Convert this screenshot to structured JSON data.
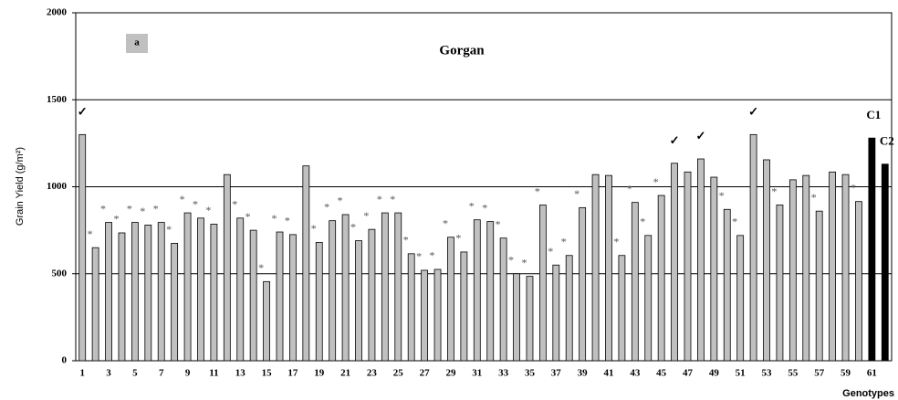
{
  "chart_data": {
    "type": "bar",
    "title": "Gorgan",
    "panel_label": "a",
    "y_label": "Grain Yield (g/m²)",
    "x_label": "Genotypes",
    "categories": [
      "1",
      null,
      "3",
      null,
      "5",
      null,
      "7",
      null,
      "9",
      null,
      "11",
      null,
      "13",
      null,
      "15",
      null,
      "17",
      null,
      "19",
      null,
      "21",
      null,
      "23",
      null,
      "25",
      null,
      "27",
      null,
      "29",
      null,
      "31",
      null,
      "33",
      null,
      "35",
      null,
      "37",
      null,
      "39",
      null,
      "41",
      null,
      "43",
      null,
      "45",
      null,
      "47",
      null,
      "49",
      null,
      "51",
      null,
      "53",
      null,
      "55",
      null,
      "57",
      null,
      "59",
      null,
      "61",
      null
    ],
    "values": [
      1300,
      650,
      795,
      735,
      795,
      780,
      795,
      675,
      850,
      820,
      785,
      1070,
      820,
      750,
      455,
      740,
      725,
      1120,
      680,
      805,
      840,
      690,
      755,
      850,
      850,
      615,
      520,
      525,
      710,
      625,
      810,
      800,
      705,
      500,
      485,
      895,
      550,
      605,
      880,
      1070,
      1065,
      605,
      910,
      720,
      950,
      1135,
      1085,
      1160,
      1055,
      870,
      720,
      1300,
      1155,
      895,
      1040,
      1065,
      860,
      1085,
      1070,
      915,
      1280,
      1130
    ],
    "annotations": [
      "✓",
      "*",
      "*",
      "*",
      "*",
      "*",
      "*",
      "*",
      "*",
      "*",
      "*",
      null,
      "*",
      "*",
      "*",
      "*",
      "*",
      null,
      "*",
      "*",
      "*",
      "*",
      "*",
      "*",
      "*",
      "*",
      "*",
      "*",
      "*",
      "*",
      "*",
      "*",
      "*",
      "*",
      "*",
      "*",
      "*",
      "*",
      "*",
      null,
      null,
      "*",
      "*",
      "*",
      "*",
      "✓",
      null,
      "✓",
      null,
      "*",
      "*",
      "✓",
      null,
      "*",
      null,
      null,
      "*",
      null,
      null,
      "*",
      "C1",
      "C2"
    ],
    "color": "#c0c0c0",
    "bar_colors": [
      "#c0c0c0",
      "#c0c0c0",
      "#c0c0c0",
      "#c0c0c0",
      "#c0c0c0",
      "#c0c0c0",
      "#c0c0c0",
      "#c0c0c0",
      "#c0c0c0",
      "#c0c0c0",
      "#c0c0c0",
      "#c0c0c0",
      "#c0c0c0",
      "#c0c0c0",
      "#c0c0c0",
      "#c0c0c0",
      "#c0c0c0",
      "#c0c0c0",
      "#c0c0c0",
      "#c0c0c0",
      "#c0c0c0",
      "#c0c0c0",
      "#c0c0c0",
      "#c0c0c0",
      "#c0c0c0",
      "#c0c0c0",
      "#c0c0c0",
      "#c0c0c0",
      "#c0c0c0",
      "#c0c0c0",
      "#c0c0c0",
      "#c0c0c0",
      "#c0c0c0",
      "#c0c0c0",
      "#c0c0c0",
      "#c0c0c0",
      "#c0c0c0",
      "#c0c0c0",
      "#c0c0c0",
      "#c0c0c0",
      "#c0c0c0",
      "#c0c0c0",
      "#c0c0c0",
      "#c0c0c0",
      "#c0c0c0",
      "#c0c0c0",
      "#c0c0c0",
      "#c0c0c0",
      "#c0c0c0",
      "#c0c0c0",
      "#c0c0c0",
      "#c0c0c0",
      "#c0c0c0",
      "#c0c0c0",
      "#c0c0c0",
      "#c0c0c0",
      "#c0c0c0",
      "#c0c0c0",
      "#c0c0c0",
      "#c0c0c0",
      "#000000",
      "#000000"
    ],
    "ylim": [
      0,
      2000
    ],
    "yticks": [
      0,
      500,
      1000,
      1500,
      2000
    ],
    "grid": true
  }
}
